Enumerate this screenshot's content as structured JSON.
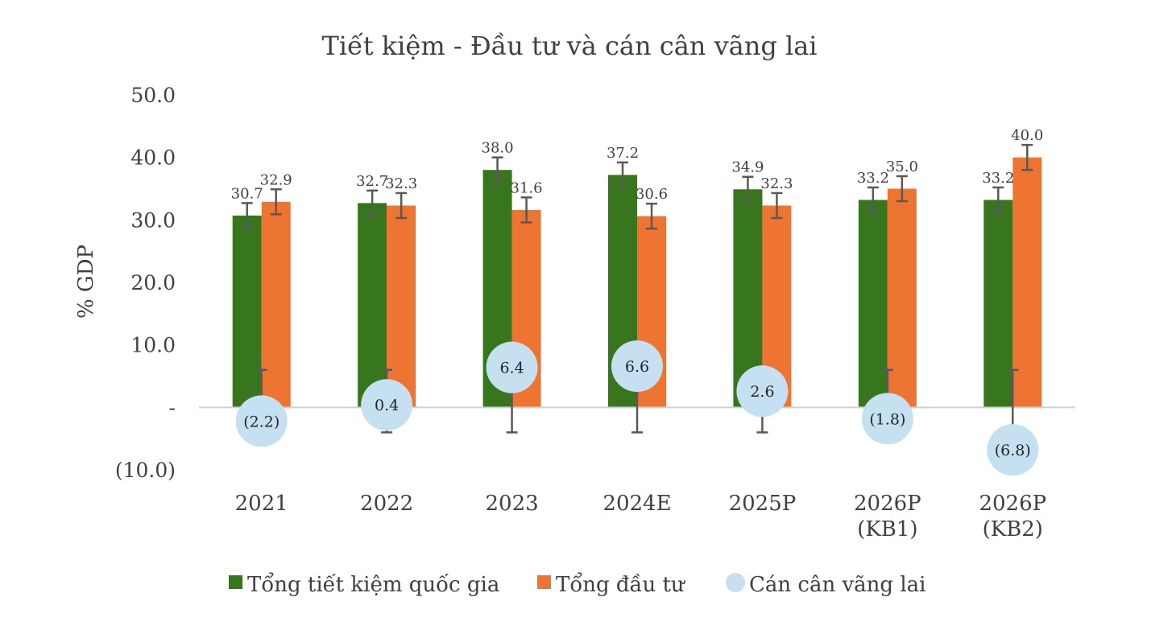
{
  "chart_data": {
    "type": "bar",
    "title": "Tiết kiệm - Đầu tư và cán cân vãng lai",
    "ylabel": "% GDP",
    "xlabel": "",
    "ylim": [
      -10,
      50
    ],
    "yticks": [
      -10,
      0,
      10,
      20,
      30,
      40,
      50
    ],
    "ytick_labels": [
      "(10.0)",
      "-",
      "10.0",
      "20.0",
      "30.0",
      "40.0",
      "50.0"
    ],
    "categories": [
      [
        "2021"
      ],
      [
        "2022"
      ],
      [
        "2023"
      ],
      [
        "2024E"
      ],
      [
        "2025P"
      ],
      [
        "2026P",
        "(KB1)"
      ],
      [
        "2026P",
        "(KB2)"
      ]
    ],
    "series": [
      {
        "name": "Tổng tiết kiệm quốc gia",
        "type": "bar",
        "color": "#38761d",
        "values": [
          30.7,
          32.7,
          38.0,
          37.2,
          34.9,
          33.2,
          33.2
        ],
        "labels": [
          "30.7",
          "32.7",
          "38.0",
          "37.2",
          "34.9",
          "33.2",
          "33.2"
        ]
      },
      {
        "name": "Tổng đầu tư",
        "type": "bar",
        "color": "#ed7431",
        "values": [
          32.9,
          32.3,
          31.6,
          30.6,
          32.3,
          35.0,
          40.0
        ],
        "labels": [
          "32.9",
          "32.3",
          "31.6",
          "30.6",
          "32.3",
          "35.0",
          "40.0"
        ]
      },
      {
        "name": "Cán cân vãng lai",
        "type": "bubble",
        "color": "#c5e0f0",
        "values": [
          -2.2,
          0.4,
          6.4,
          6.6,
          2.6,
          -1.8,
          -6.8
        ],
        "labels": [
          "(2.2)",
          "0.4",
          "6.4",
          "6.6",
          "2.6",
          "(1.8)",
          "(6.8)"
        ],
        "error_range": [
          [
            0,
            6
          ],
          [
            -4,
            6
          ],
          [
            -4,
            6
          ],
          [
            -4,
            6
          ],
          [
            -4,
            6
          ],
          [
            0,
            6
          ],
          [
            -4,
            6
          ]
        ]
      }
    ],
    "error_bar_half": 2,
    "grid": false,
    "legend_position": "bottom"
  }
}
